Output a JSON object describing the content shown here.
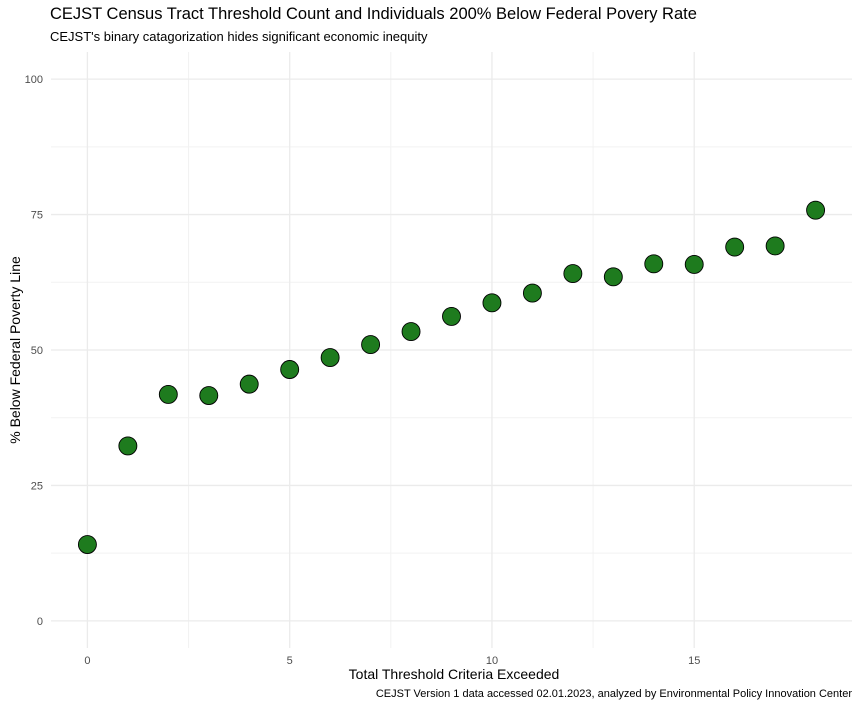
{
  "chart_data": {
    "type": "scatter",
    "title": "CEJST Census Tract Threshold Count and Individuals 200% Below Federal Povery Rate",
    "subtitle": "CEJST's binary catagorization hides significant economic inequity",
    "caption": "CEJST Version 1 data accessed 02.01.2023, analyzed by Environmental Policy Innovation Center",
    "xlabel": "Total Threshold Criteria Exceeded",
    "ylabel": "% Below Federal Poverty Line",
    "xlim": [
      -0.9,
      18.9
    ],
    "ylim": [
      -5,
      105
    ],
    "xticks": [
      0,
      5,
      10,
      15
    ],
    "yticks": [
      0,
      25,
      50,
      75,
      100
    ],
    "grid": true,
    "point_color": "#1e7b1e",
    "x": [
      0,
      1,
      2,
      3,
      4,
      5,
      6,
      7,
      8,
      9,
      10,
      11,
      12,
      13,
      14,
      15,
      16,
      17,
      18
    ],
    "y": [
      14.1,
      32.3,
      41.8,
      41.6,
      43.7,
      46.4,
      48.6,
      51.0,
      53.4,
      56.2,
      58.7,
      60.5,
      64.1,
      63.5,
      65.9,
      65.8,
      69.0,
      69.2,
      75.8
    ]
  }
}
